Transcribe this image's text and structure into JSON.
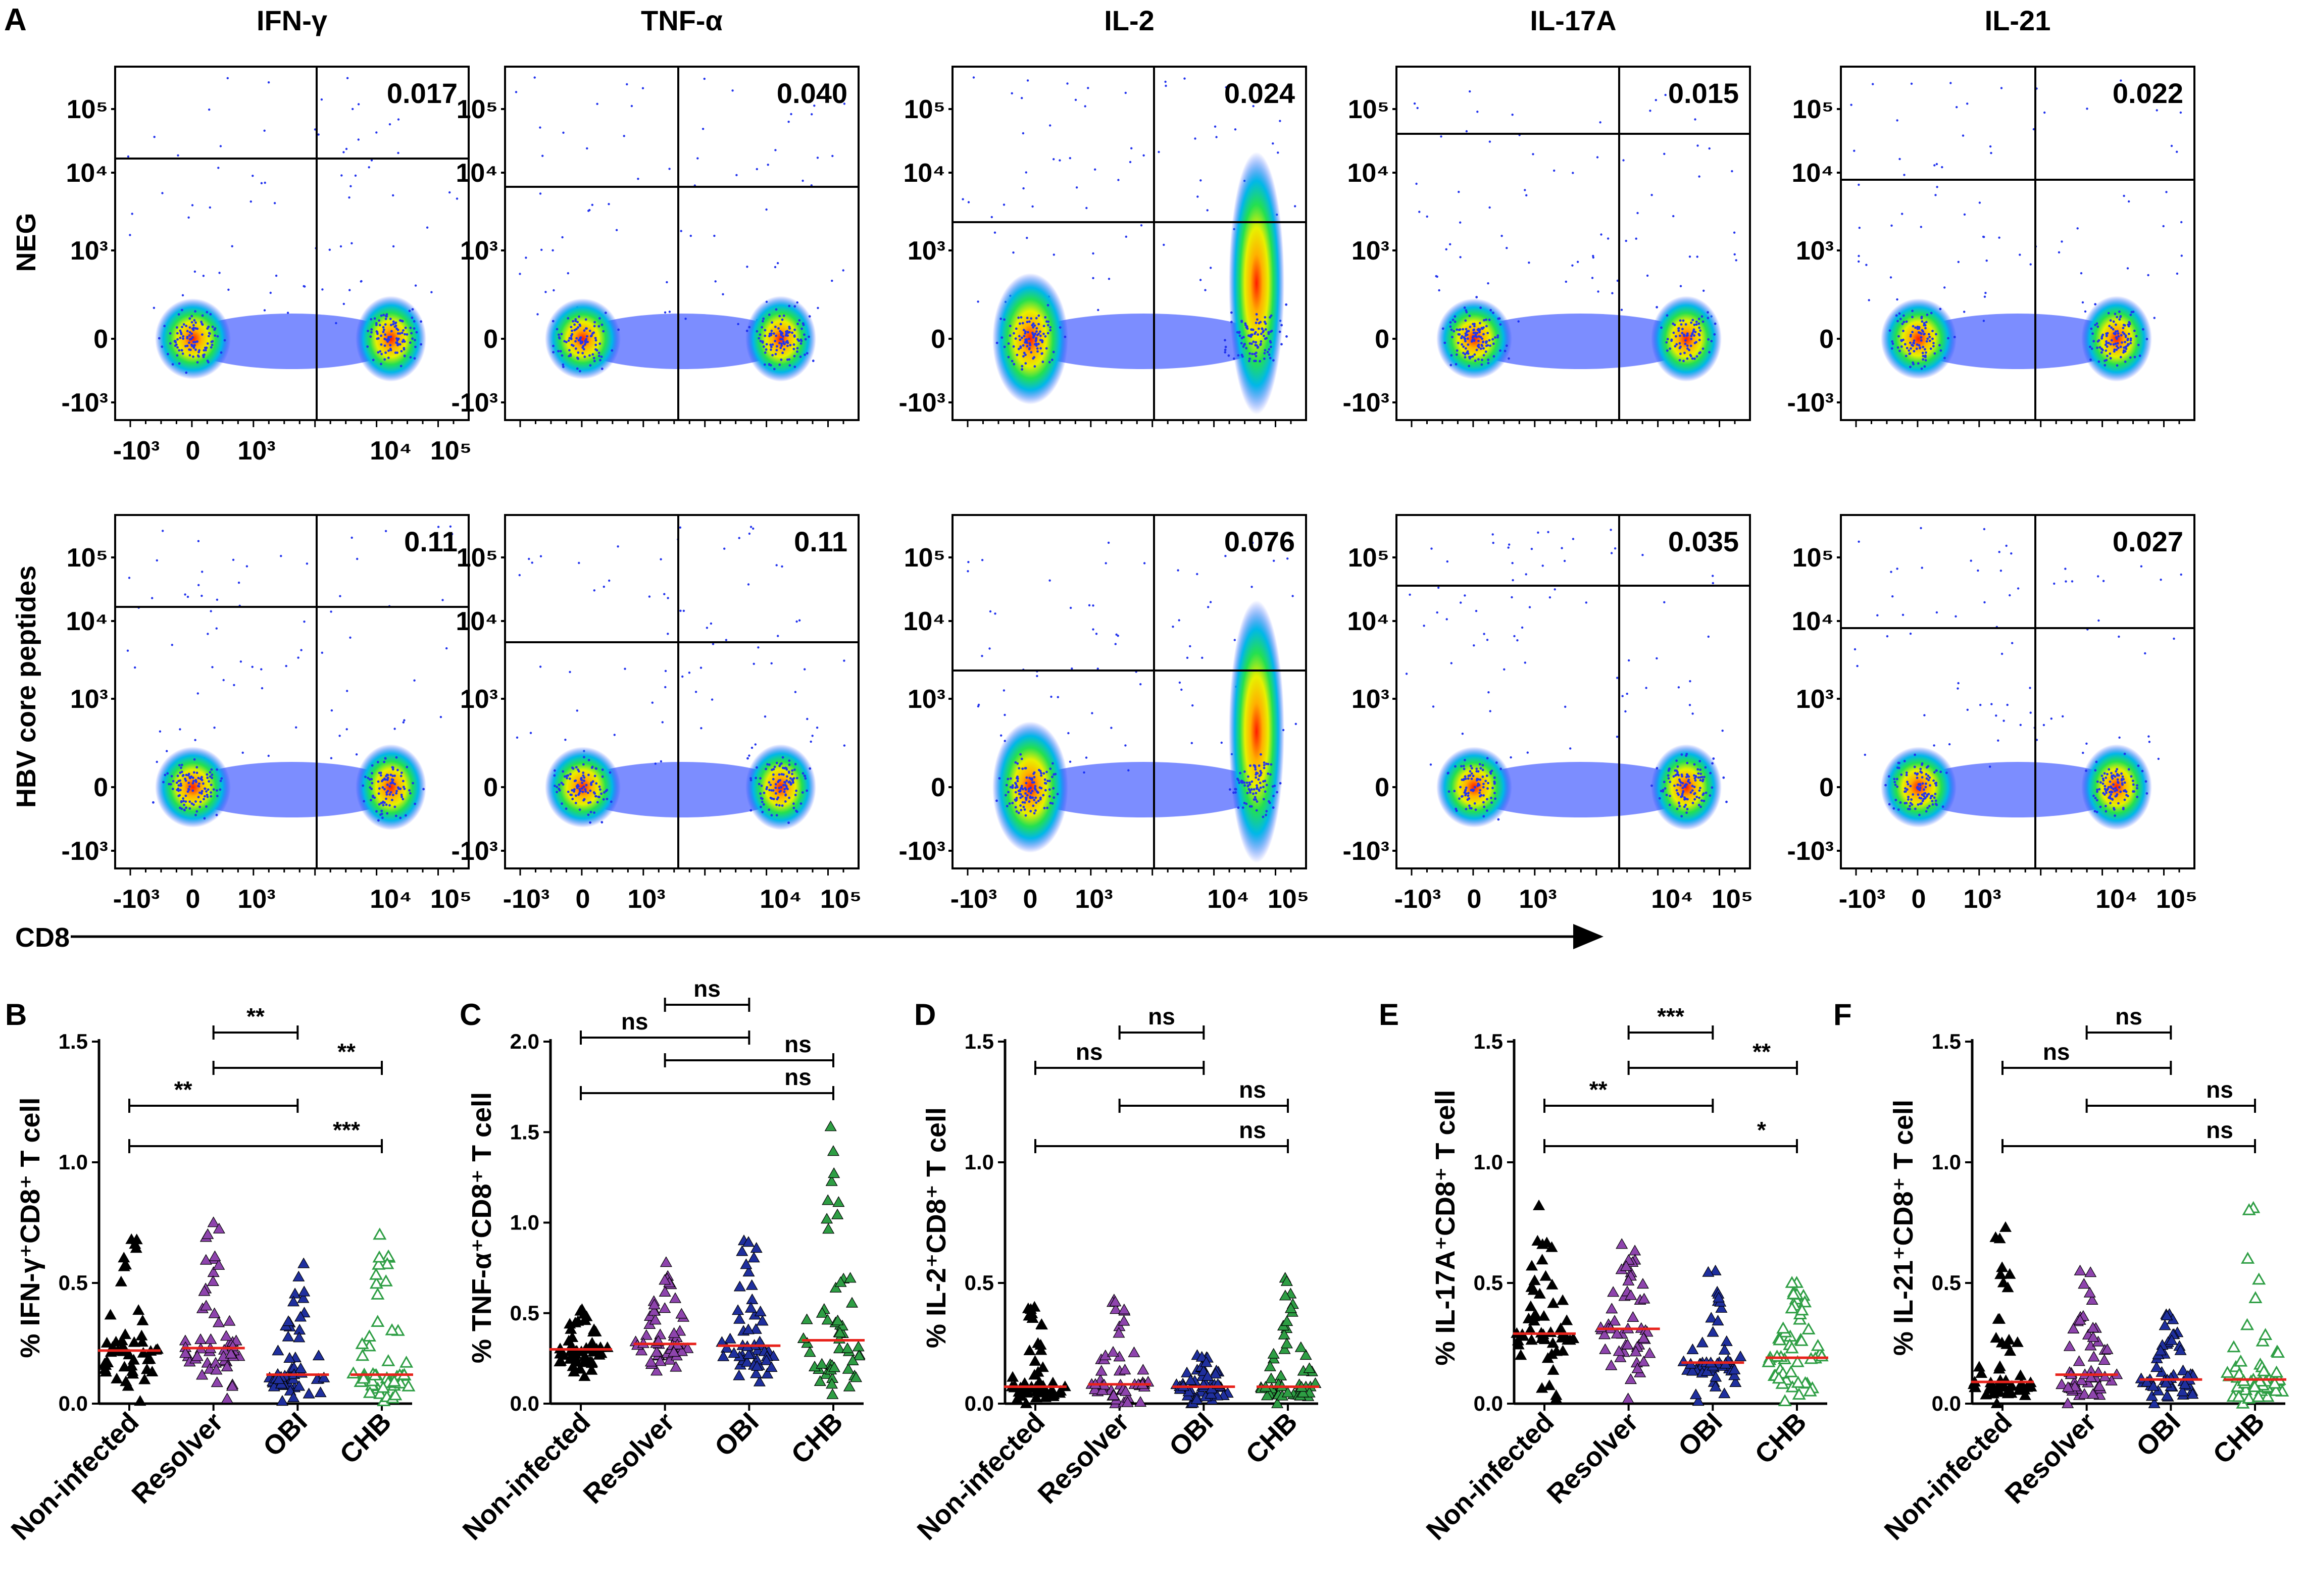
{
  "figure": {
    "panel_a_label": "A",
    "row_labels": [
      "NEG",
      "HBV core peptides"
    ],
    "x_axis_label": "CD8",
    "flow_columns": [
      "IFN-γ",
      "TNF-α",
      "IL-2",
      "IL-17A",
      "IL-21"
    ],
    "flow_tick_labels": {
      "x": [
        "-10³",
        "0",
        "10³",
        "10⁴",
        "10⁵"
      ],
      "y": [
        "10⁵",
        "10⁴",
        "10³",
        "0",
        "-10³"
      ]
    },
    "quadrant_values": {
      "NEG": [
        "0.017",
        "0.040",
        "0.024",
        "0.015",
        "0.022"
      ],
      "HBV core peptides": [
        "0.11",
        "0.11",
        "0.076",
        "0.035",
        "0.027"
      ]
    },
    "groups": [
      "Non-infected",
      "Resolver",
      "OBI",
      "CHB"
    ],
    "marker_colors": [
      "#000000",
      "#8e44ad",
      "#1f2f9e",
      "#2e9e44"
    ],
    "median_color": "#e8221b"
  },
  "chart_data": [
    {
      "type": "scatter",
      "panel": "B",
      "title": "",
      "ylabel": "% IFN-γ⁺CD8⁺ T cell",
      "categories": [
        "Non-infected",
        "Resolver",
        "OBI",
        "CHB"
      ],
      "ylim": [
        0,
        1.5
      ],
      "yticks": [
        "0.0",
        "0.5",
        "1.0",
        "1.5"
      ],
      "medians": [
        0.22,
        0.23,
        0.12,
        0.12
      ],
      "ranges": [
        [
          0.01,
          0.68
        ],
        [
          0.02,
          0.75
        ],
        [
          0.01,
          0.58
        ],
        [
          0.01,
          0.7
        ]
      ],
      "comparisons": [
        {
          "from": "Resolver",
          "to": "OBI",
          "label": "**"
        },
        {
          "from": "Resolver",
          "to": "CHB",
          "label": "**"
        },
        {
          "from": "Non-infected",
          "to": "OBI",
          "label": "**"
        },
        {
          "from": "Non-infected",
          "to": "CHB",
          "label": "***"
        }
      ]
    },
    {
      "type": "scatter",
      "panel": "C",
      "title": "",
      "ylabel": "% TNF-α⁺CD8⁺ T cell",
      "categories": [
        "Non-infected",
        "Resolver",
        "OBI",
        "CHB"
      ],
      "ylim": [
        0,
        2.0
      ],
      "yticks": [
        "0.0",
        "0.5",
        "1.0",
        "1.5",
        "2.0"
      ],
      "medians": [
        0.3,
        0.33,
        0.32,
        0.35
      ],
      "ranges": [
        [
          0.15,
          0.52
        ],
        [
          0.18,
          0.78
        ],
        [
          0.12,
          0.9
        ],
        [
          0.05,
          1.53
        ]
      ],
      "comparisons": [
        {
          "from": "Resolver",
          "to": "OBI",
          "label": "ns"
        },
        {
          "from": "Non-infected",
          "to": "OBI",
          "label": "ns"
        },
        {
          "from": "Resolver",
          "to": "CHB",
          "label": "ns"
        },
        {
          "from": "Non-infected",
          "to": "CHB",
          "label": "ns"
        }
      ]
    },
    {
      "type": "scatter",
      "panel": "D",
      "title": "",
      "ylabel": "% IL-2⁺CD8⁺ T cell",
      "categories": [
        "Non-infected",
        "Resolver",
        "OBI",
        "CHB"
      ],
      "ylim": [
        0,
        1.5
      ],
      "yticks": [
        "0.0",
        "0.5",
        "1.0",
        "1.5"
      ],
      "medians": [
        0.07,
        0.08,
        0.07,
        0.07
      ],
      "ranges": [
        [
          0.0,
          0.4
        ],
        [
          0.0,
          0.43
        ],
        [
          0.0,
          0.2
        ],
        [
          0.0,
          0.52
        ]
      ],
      "comparisons": [
        {
          "from": "Resolver",
          "to": "OBI",
          "label": "ns"
        },
        {
          "from": "Non-infected",
          "to": "OBI",
          "label": "ns"
        },
        {
          "from": "Resolver",
          "to": "CHB",
          "label": "ns"
        },
        {
          "from": "Non-infected",
          "to": "CHB",
          "label": "ns"
        }
      ]
    },
    {
      "type": "scatter",
      "panel": "E",
      "title": "",
      "ylabel": "% IL-17A⁺CD8⁺ T cell",
      "categories": [
        "Non-infected",
        "Resolver",
        "OBI",
        "CHB"
      ],
      "ylim": [
        0,
        1.5
      ],
      "yticks": [
        "0.0",
        "0.5",
        "1.0",
        "1.5"
      ],
      "medians": [
        0.29,
        0.31,
        0.17,
        0.19
      ],
      "ranges": [
        [
          0.02,
          0.82
        ],
        [
          0.02,
          0.66
        ],
        [
          0.01,
          0.55
        ],
        [
          0.01,
          0.5
        ]
      ],
      "comparisons": [
        {
          "from": "Resolver",
          "to": "OBI",
          "label": "***"
        },
        {
          "from": "Resolver",
          "to": "CHB",
          "label": "**"
        },
        {
          "from": "Non-infected",
          "to": "OBI",
          "label": "**"
        },
        {
          "from": "Non-infected",
          "to": "CHB",
          "label": "*"
        }
      ]
    },
    {
      "type": "scatter",
      "panel": "F",
      "title": "",
      "ylabel": "% IL-21⁺CD8⁺ T cell",
      "categories": [
        "Non-infected",
        "Resolver",
        "OBI",
        "CHB"
      ],
      "ylim": [
        0,
        1.5
      ],
      "yticks": [
        "0.0",
        "0.5",
        "1.0",
        "1.5"
      ],
      "medians": [
        0.09,
        0.12,
        0.1,
        0.1
      ],
      "ranges": [
        [
          0.0,
          0.73
        ],
        [
          0.0,
          0.55
        ],
        [
          0.0,
          0.37
        ],
        [
          0.0,
          0.81
        ]
      ],
      "comparisons": [
        {
          "from": "Resolver",
          "to": "OBI",
          "label": "ns"
        },
        {
          "from": "Non-infected",
          "to": "OBI",
          "label": "ns"
        },
        {
          "from": "Resolver",
          "to": "CHB",
          "label": "ns"
        },
        {
          "from": "Non-infected",
          "to": "CHB",
          "label": "ns"
        }
      ]
    }
  ]
}
